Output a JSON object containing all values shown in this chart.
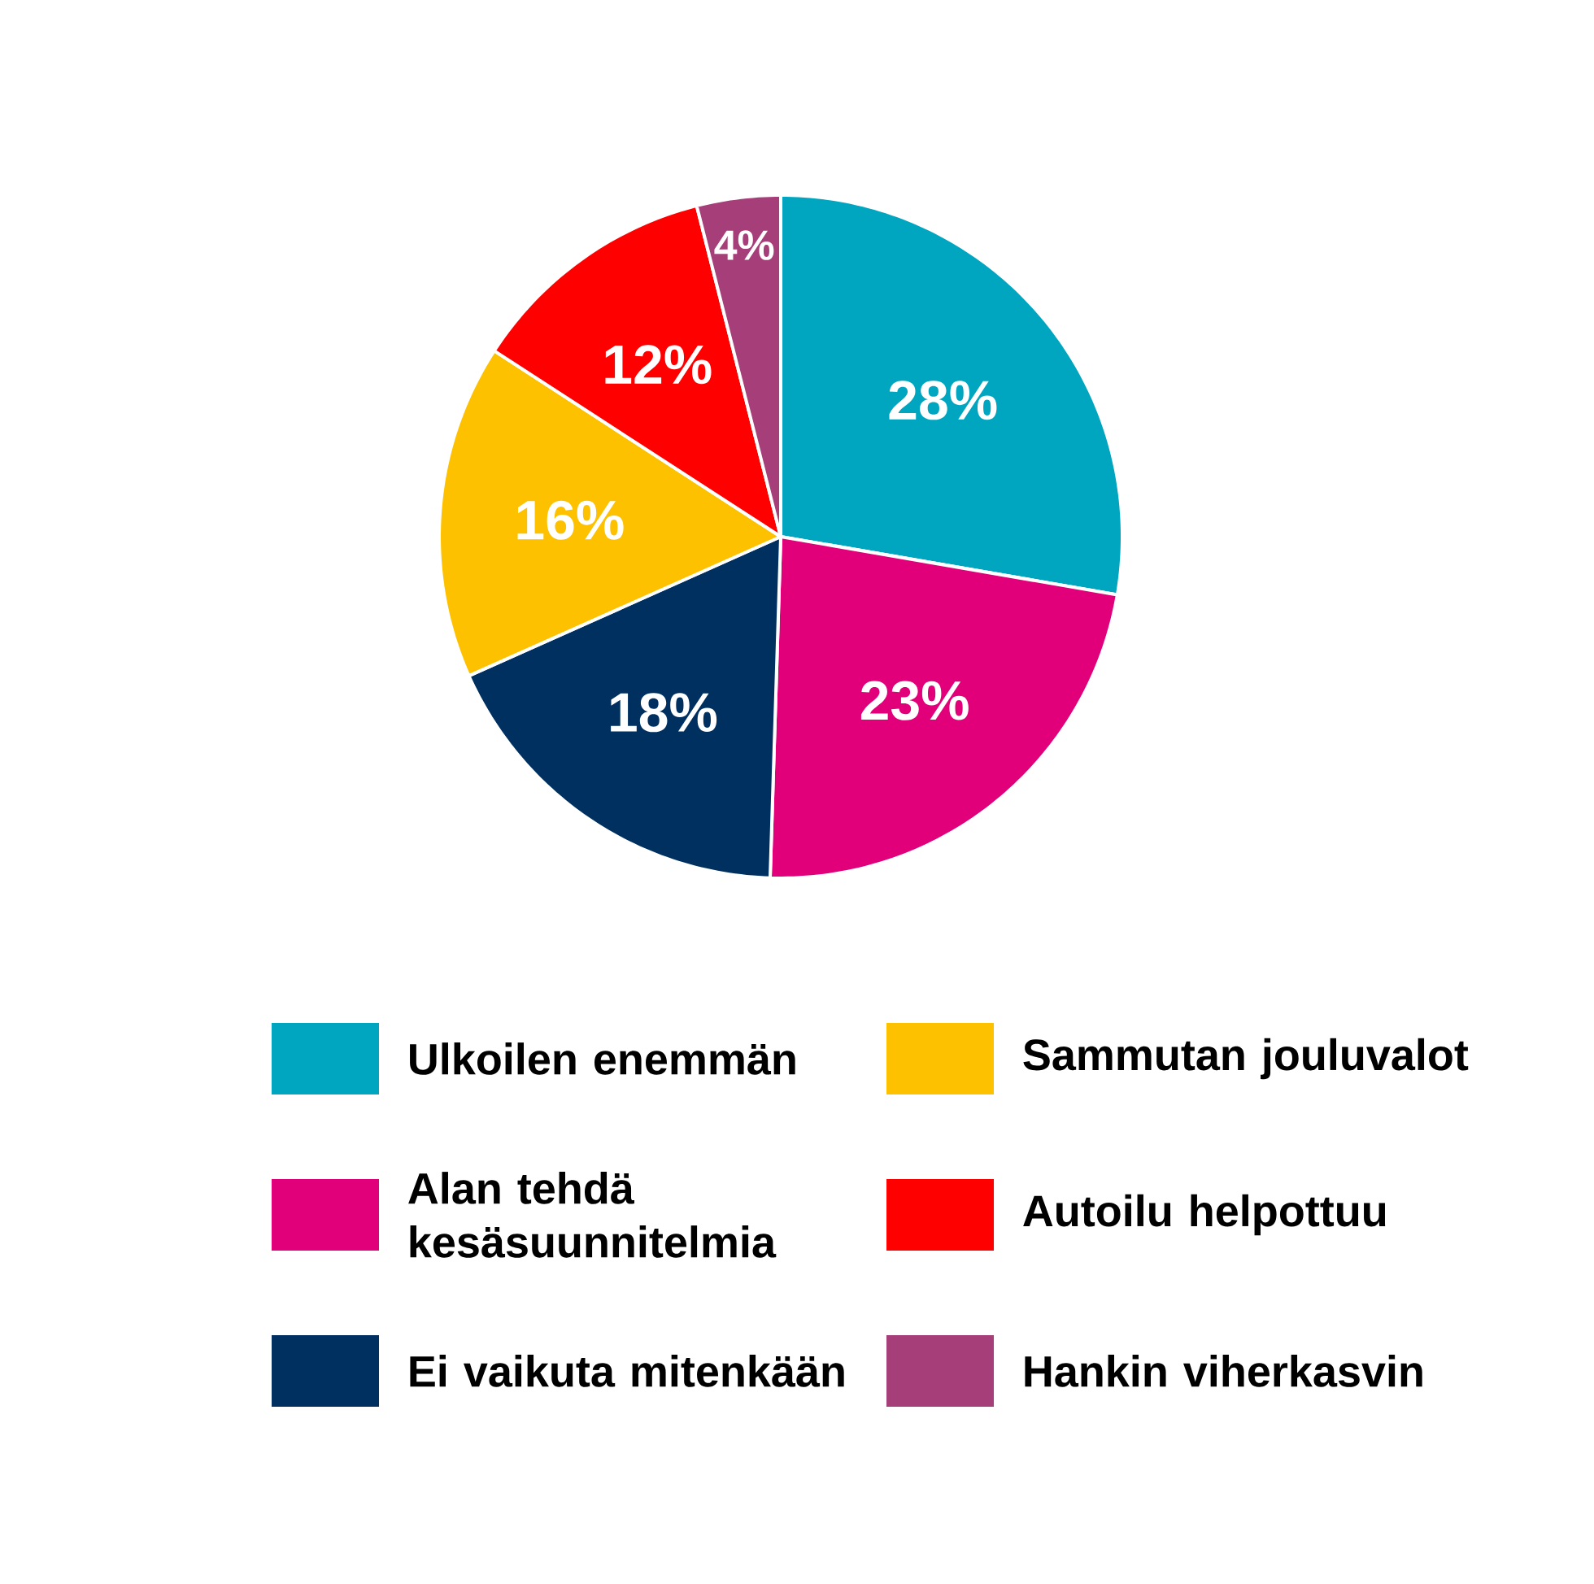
{
  "chart_data": {
    "type": "pie",
    "categories": [
      "Ulkoilen enemmän",
      "Alan tehdä kesäsuunnitelmia",
      "Ei vaikuta mitenkään",
      "Sammutan jouluvalot",
      "Autoilu helpottuu",
      "Hankin viherkasvin"
    ],
    "values": [
      28,
      23,
      18,
      16,
      12,
      4
    ],
    "colors": [
      "#00a5c0",
      "#e2007a",
      "#003060",
      "#fdc100",
      "#ff0000",
      "#a63e7a"
    ],
    "value_labels": [
      "28%",
      "23%",
      "18%",
      "16%",
      "12%",
      "4%"
    ],
    "legend": "bottom"
  }
}
